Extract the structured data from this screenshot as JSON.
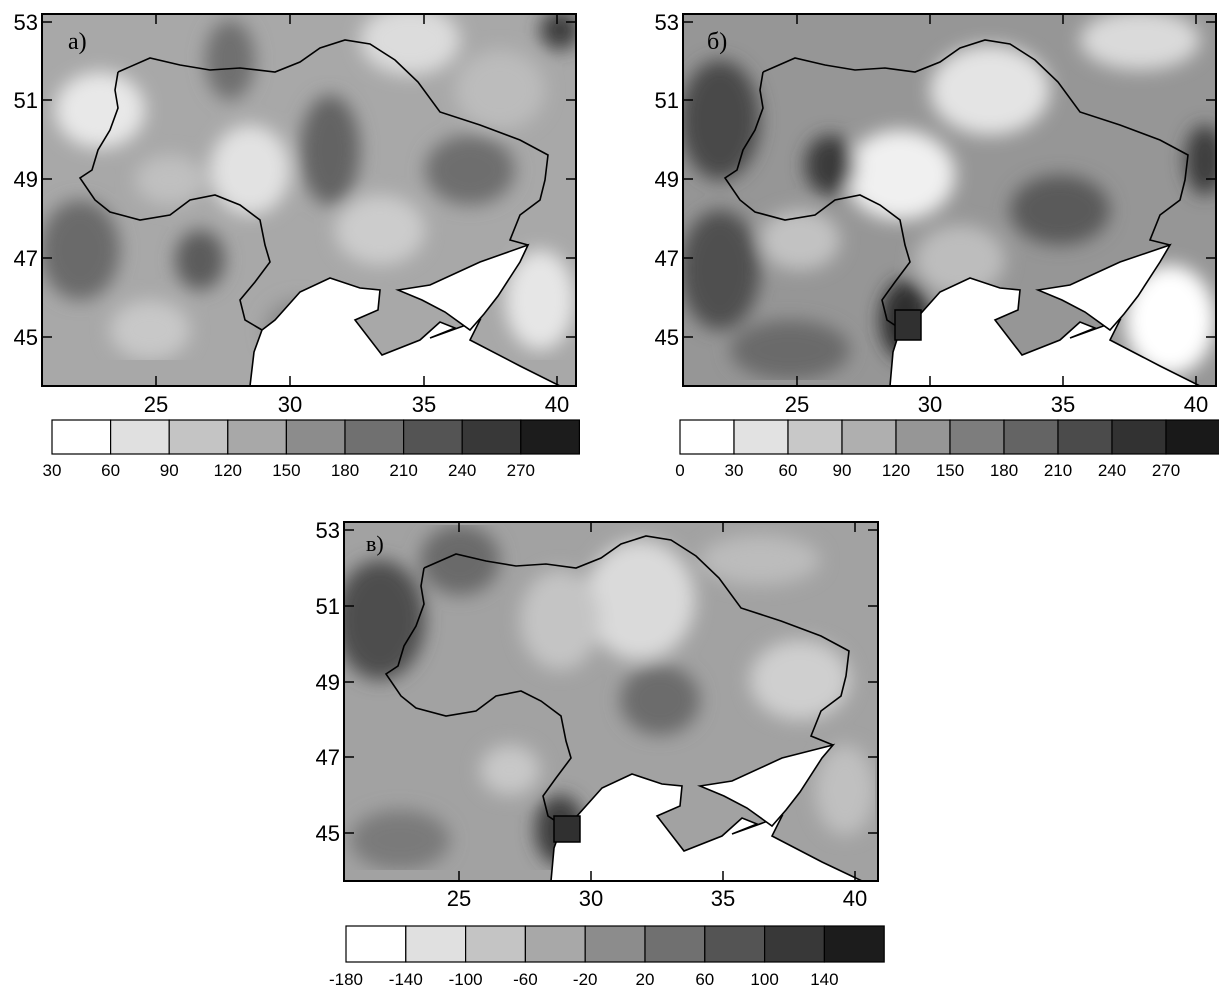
{
  "panels": [
    {
      "label": "а)",
      "y_ticks": [
        "53",
        "51",
        "49",
        "47",
        "45"
      ],
      "x_ticks": [
        "25",
        "30",
        "35",
        "40"
      ],
      "colorbar": {
        "labels": [
          "30",
          "60",
          "90",
          "120",
          "150",
          "180",
          "210",
          "240",
          "270"
        ],
        "fills": [
          "#ffffff",
          "#e0e0e0",
          "#c4c4c4",
          "#a8a8a8",
          "#8c8c8c",
          "#707070",
          "#545454",
          "#383838",
          "#1c1c1c"
        ]
      }
    },
    {
      "label": "б)",
      "y_ticks": [
        "53",
        "51",
        "49",
        "47",
        "45"
      ],
      "x_ticks": [
        "25",
        "30",
        "35",
        "40"
      ],
      "colorbar": {
        "labels": [
          "0",
          "30",
          "60",
          "90",
          "120",
          "150",
          "180",
          "210",
          "240",
          "270"
        ],
        "fills": [
          "#ffffff",
          "#e2e2e2",
          "#c8c8c8",
          "#afafaf",
          "#969696",
          "#7d7d7d",
          "#646464",
          "#4b4b4b",
          "#323232",
          "#191919"
        ]
      }
    },
    {
      "label": "в)",
      "y_ticks": [
        "53",
        "51",
        "49",
        "47",
        "45"
      ],
      "x_ticks": [
        "25",
        "30",
        "35",
        "40"
      ],
      "colorbar": {
        "labels": [
          "-180",
          "-140",
          "-100",
          "-60",
          "-20",
          "20",
          "60",
          "100",
          "140"
        ],
        "fills": [
          "#ffffff",
          "#e0e0e0",
          "#c4c4c4",
          "#a8a8a8",
          "#8c8c8c",
          "#707070",
          "#545454",
          "#383838",
          "#1c1c1c"
        ]
      }
    }
  ]
}
